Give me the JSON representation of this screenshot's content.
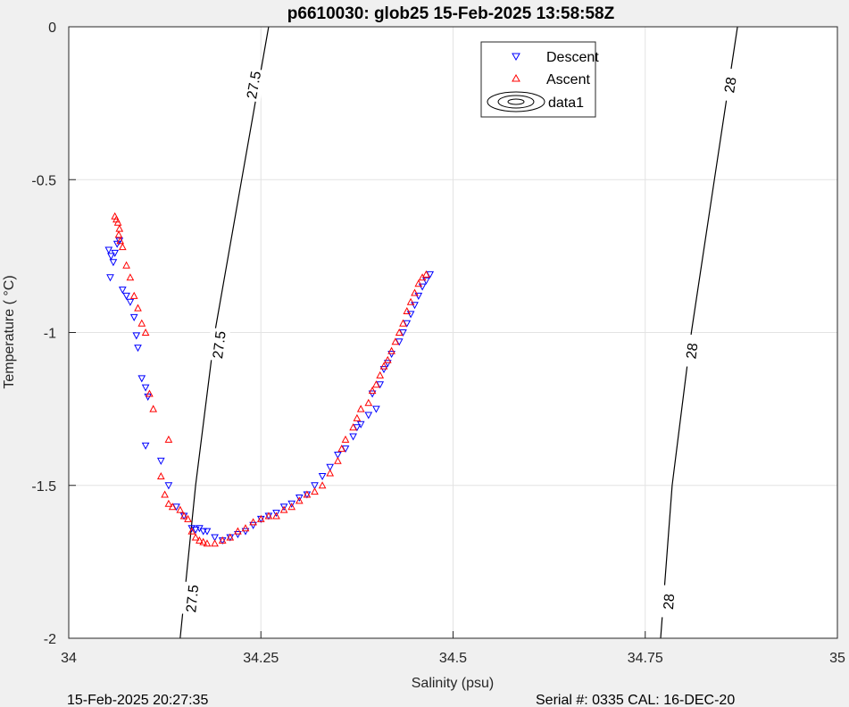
{
  "chart_data": {
    "type": "scatter",
    "title": "p6610030: glob25 15-Feb-2025 13:58:58Z",
    "xlabel": "Salinity (psu)",
    "ylabel": "Temperature (    °C)",
    "xlim": [
      34,
      35
    ],
    "ylim": [
      -2,
      0
    ],
    "xticks": [
      34,
      34.25,
      34.5,
      34.75,
      35
    ],
    "xtick_labels": [
      "34",
      "34.25",
      "34.5",
      "34.75",
      "35"
    ],
    "yticks": [
      0,
      -0.5,
      -1,
      -1.5,
      -2
    ],
    "ytick_labels": [
      "0",
      "-0.5",
      "-1",
      "-1.5",
      "-2"
    ],
    "grid": true,
    "legend_position": "top-right",
    "legend": [
      "Descent",
      "Ascent",
      "data1"
    ],
    "series": [
      {
        "name": "Descent",
        "marker": "triangle-down",
        "color": "#0000ff",
        "points": [
          [
            34.052,
            -0.73
          ],
          [
            34.055,
            -0.75
          ],
          [
            34.058,
            -0.77
          ],
          [
            34.06,
            -0.74
          ],
          [
            34.063,
            -0.71
          ],
          [
            34.066,
            -0.7
          ],
          [
            34.054,
            -0.82
          ],
          [
            34.07,
            -0.86
          ],
          [
            34.075,
            -0.88
          ],
          [
            34.08,
            -0.9
          ],
          [
            34.085,
            -0.95
          ],
          [
            34.088,
            -1.01
          ],
          [
            34.09,
            -1.05
          ],
          [
            34.095,
            -1.15
          ],
          [
            34.1,
            -1.18
          ],
          [
            34.103,
            -1.21
          ],
          [
            34.1,
            -1.37
          ],
          [
            34.12,
            -1.42
          ],
          [
            34.13,
            -1.5
          ],
          [
            34.14,
            -1.57
          ],
          [
            34.15,
            -1.6
          ],
          [
            34.16,
            -1.64
          ],
          [
            34.165,
            -1.645
          ],
          [
            34.17,
            -1.64
          ],
          [
            34.175,
            -1.65
          ],
          [
            34.18,
            -1.65
          ],
          [
            34.19,
            -1.67
          ],
          [
            34.2,
            -1.68
          ],
          [
            34.21,
            -1.67
          ],
          [
            34.22,
            -1.66
          ],
          [
            34.23,
            -1.65
          ],
          [
            34.24,
            -1.63
          ],
          [
            34.25,
            -1.61
          ],
          [
            34.26,
            -1.6
          ],
          [
            34.27,
            -1.59
          ],
          [
            34.28,
            -1.57
          ],
          [
            34.29,
            -1.56
          ],
          [
            34.3,
            -1.54
          ],
          [
            34.31,
            -1.53
          ],
          [
            34.32,
            -1.5
          ],
          [
            34.33,
            -1.47
          ],
          [
            34.34,
            -1.44
          ],
          [
            34.35,
            -1.4
          ],
          [
            34.36,
            -1.38
          ],
          [
            34.37,
            -1.34
          ],
          [
            34.375,
            -1.31
          ],
          [
            34.38,
            -1.3
          ],
          [
            34.39,
            -1.27
          ],
          [
            34.4,
            -1.25
          ],
          [
            34.395,
            -1.2
          ],
          [
            34.405,
            -1.17
          ],
          [
            34.41,
            -1.12
          ],
          [
            34.415,
            -1.1
          ],
          [
            34.42,
            -1.07
          ],
          [
            34.43,
            -1.03
          ],
          [
            34.435,
            -1.0
          ],
          [
            34.44,
            -0.97
          ],
          [
            34.445,
            -0.94
          ],
          [
            34.45,
            -0.91
          ],
          [
            34.455,
            -0.88
          ],
          [
            34.46,
            -0.85
          ],
          [
            34.465,
            -0.83
          ],
          [
            34.47,
            -0.81
          ]
        ]
      },
      {
        "name": "Ascent",
        "marker": "triangle-up",
        "color": "#ff0000",
        "points": [
          [
            34.06,
            -0.62
          ],
          [
            34.062,
            -0.63
          ],
          [
            34.064,
            -0.64
          ],
          [
            34.066,
            -0.66
          ],
          [
            34.065,
            -0.68
          ],
          [
            34.067,
            -0.7
          ],
          [
            34.07,
            -0.72
          ],
          [
            34.075,
            -0.78
          ],
          [
            34.08,
            -0.82
          ],
          [
            34.085,
            -0.88
          ],
          [
            34.09,
            -0.92
          ],
          [
            34.095,
            -0.97
          ],
          [
            34.1,
            -1.0
          ],
          [
            34.105,
            -1.2
          ],
          [
            34.11,
            -1.25
          ],
          [
            34.12,
            -1.47
          ],
          [
            34.13,
            -1.35
          ],
          [
            34.125,
            -1.53
          ],
          [
            34.13,
            -1.56
          ],
          [
            34.135,
            -1.57
          ],
          [
            34.145,
            -1.58
          ],
          [
            34.15,
            -1.6
          ],
          [
            34.155,
            -1.61
          ],
          [
            34.16,
            -1.65
          ],
          [
            34.165,
            -1.67
          ],
          [
            34.17,
            -1.68
          ],
          [
            34.175,
            -1.685
          ],
          [
            34.18,
            -1.69
          ],
          [
            34.19,
            -1.69
          ],
          [
            34.2,
            -1.68
          ],
          [
            34.21,
            -1.67
          ],
          [
            34.22,
            -1.65
          ],
          [
            34.23,
            -1.64
          ],
          [
            34.24,
            -1.62
          ],
          [
            34.25,
            -1.61
          ],
          [
            34.26,
            -1.6
          ],
          [
            34.27,
            -1.6
          ],
          [
            34.28,
            -1.58
          ],
          [
            34.29,
            -1.57
          ],
          [
            34.3,
            -1.55
          ],
          [
            34.31,
            -1.53
          ],
          [
            34.32,
            -1.52
          ],
          [
            34.33,
            -1.5
          ],
          [
            34.34,
            -1.46
          ],
          [
            34.35,
            -1.42
          ],
          [
            34.355,
            -1.38
          ],
          [
            34.36,
            -1.35
          ],
          [
            34.37,
            -1.31
          ],
          [
            34.375,
            -1.28
          ],
          [
            34.38,
            -1.25
          ],
          [
            34.39,
            -1.23
          ],
          [
            34.395,
            -1.19
          ],
          [
            34.4,
            -1.17
          ],
          [
            34.405,
            -1.14
          ],
          [
            34.41,
            -1.11
          ],
          [
            34.415,
            -1.09
          ],
          [
            34.42,
            -1.06
          ],
          [
            34.425,
            -1.03
          ],
          [
            34.43,
            -1.0
          ],
          [
            34.435,
            -0.97
          ],
          [
            34.44,
            -0.93
          ],
          [
            34.445,
            -0.9
          ],
          [
            34.45,
            -0.87
          ],
          [
            34.455,
            -0.84
          ],
          [
            34.46,
            -0.82
          ],
          [
            34.465,
            -0.81
          ]
        ]
      }
    ],
    "contours": [
      {
        "level": "27.5",
        "points": [
          [
            34.26,
            0
          ],
          [
            34.225,
            -0.5
          ],
          [
            34.19,
            -1.0
          ],
          [
            34.165,
            -1.5
          ],
          [
            34.145,
            -2.0
          ]
        ],
        "label_positions": [
          [
            34.24,
            -0.19
          ],
          [
            34.195,
            -1.04
          ],
          [
            34.16,
            -1.87
          ]
        ]
      },
      {
        "level": "28",
        "points": [
          [
            34.87,
            0
          ],
          [
            34.84,
            -0.5
          ],
          [
            34.81,
            -1.0
          ],
          [
            34.785,
            -1.5
          ],
          [
            34.77,
            -2.0
          ]
        ],
        "label_positions": [
          [
            34.86,
            -0.19
          ],
          [
            34.81,
            -1.06
          ],
          [
            34.78,
            -1.88
          ]
        ]
      }
    ]
  },
  "footer": {
    "left": "15-Feb-2025 20:27:35",
    "right": "Serial #: 0335  CAL: 16-DEC-20"
  }
}
